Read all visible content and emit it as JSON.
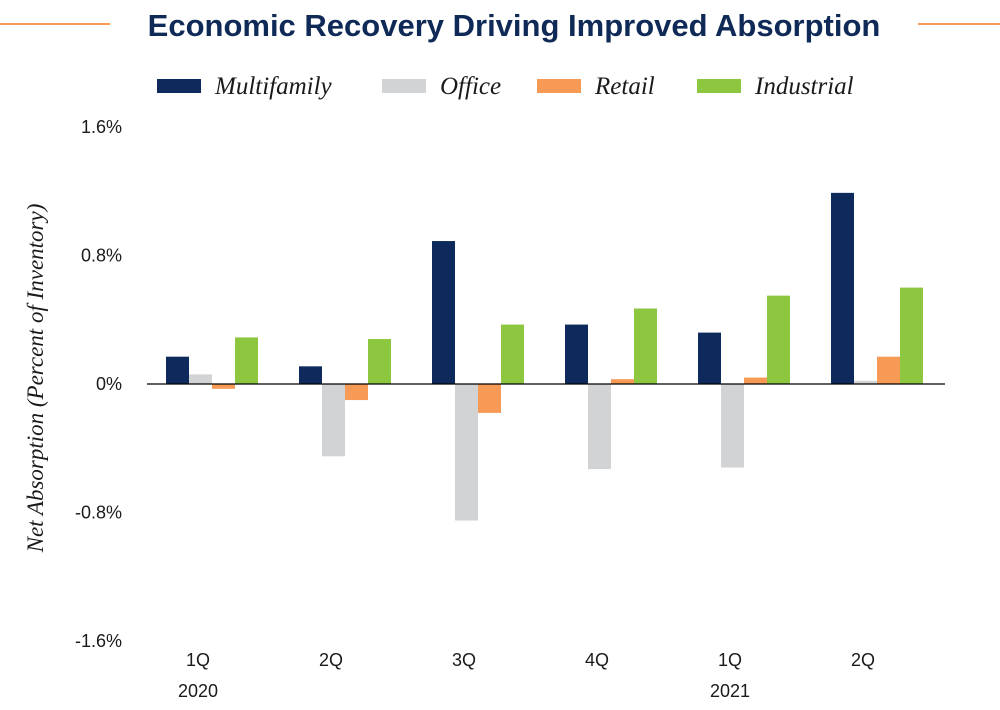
{
  "chart_data": {
    "type": "bar",
    "title": "Economic Recovery Driving Improved Absorption",
    "ylabel": "Net Absorption (Percent of Inventory)",
    "xlabel": "",
    "ylim": [
      -1.6,
      1.6
    ],
    "yticks": [
      1.6,
      0.8,
      0,
      -0.8,
      -1.6
    ],
    "ytick_labels": [
      "1.6%",
      "0.8%",
      "0%",
      "-0.8%",
      "-1.6%"
    ],
    "categories": [
      "1Q",
      "2Q",
      "3Q",
      "4Q",
      "1Q",
      "2Q"
    ],
    "year_labels": [
      {
        "label": "2020",
        "category_index": 0
      },
      {
        "label": "2021",
        "category_index": 4
      }
    ],
    "legend_position": "top",
    "series": [
      {
        "name": "Multifamily",
        "color": "#0e2a5c",
        "values": [
          0.17,
          0.11,
          0.89,
          0.37,
          0.32,
          1.19
        ]
      },
      {
        "name": "Office",
        "color": "#d1d3d5",
        "values": [
          0.06,
          -0.45,
          -0.85,
          -0.53,
          -0.52,
          0.02
        ]
      },
      {
        "name": "Retail",
        "color": "#f79a56",
        "values": [
          -0.03,
          -0.1,
          -0.18,
          0.03,
          0.04,
          0.17
        ]
      },
      {
        "name": "Industrial",
        "color": "#8dc63f",
        "values": [
          0.29,
          0.28,
          0.37,
          0.47,
          0.55,
          0.6
        ]
      }
    ],
    "accent_color": "#f79a56",
    "axis_color": "#000000"
  }
}
